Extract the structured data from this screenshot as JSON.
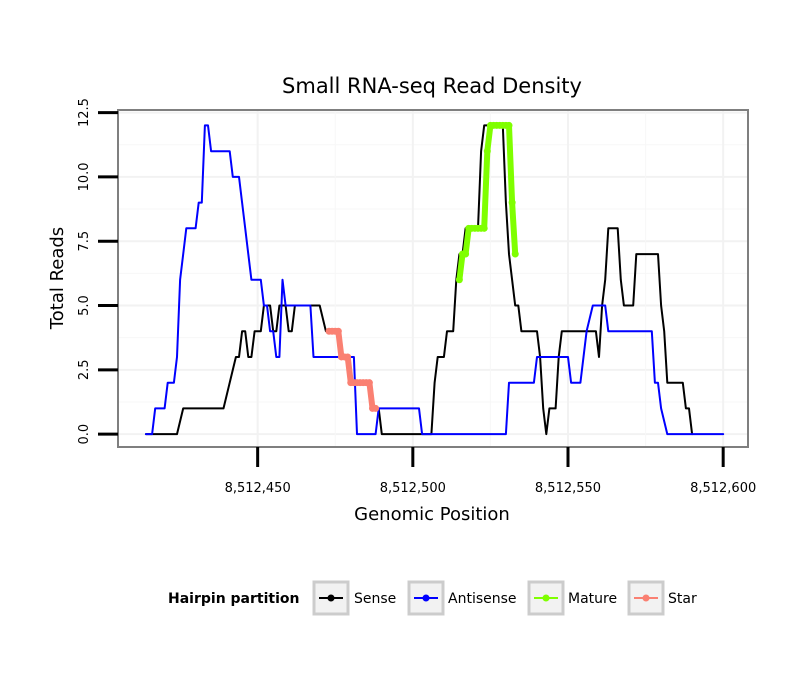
{
  "chart_data": {
    "type": "line",
    "title": "Small RNA-seq Read Density",
    "xlabel": "Genomic Position",
    "ylabel": "Total Reads",
    "xlim": [
      8512405,
      8512608
    ],
    "ylim": [
      -0.5,
      12.6
    ],
    "x_ticks": [
      8512450,
      8512500,
      8512550,
      8512600
    ],
    "x_tick_labels": [
      "8,512,450",
      "8,512,500",
      "8,512,550",
      "8,512,600"
    ],
    "y_ticks": [
      0,
      2.5,
      5,
      7.5,
      10,
      12.5
    ],
    "y_tick_labels": [
      "0.0",
      "2.5",
      "5.0",
      "7.5",
      "10.0",
      "12.5"
    ],
    "legend": {
      "title": "Hairpin partition",
      "position": "bottom",
      "entries": [
        {
          "label": "Sense",
          "color": "#000000"
        },
        {
          "label": "Antisense",
          "color": "#0000ff"
        },
        {
          "label": "Mature",
          "color": "#7fff00"
        },
        {
          "label": "Star",
          "color": "#fa8072"
        }
      ]
    },
    "series": [
      {
        "name": "Sense",
        "color": "#000000",
        "points": [
          [
            8512414,
            0
          ],
          [
            8512424,
            0
          ],
          [
            8512426,
            1
          ],
          [
            8512439,
            1
          ],
          [
            8512441,
            2
          ],
          [
            8512443,
            3
          ],
          [
            8512444,
            3
          ],
          [
            8512445,
            4
          ],
          [
            8512446,
            4
          ],
          [
            8512447,
            3
          ],
          [
            8512448,
            3
          ],
          [
            8512449,
            4
          ],
          [
            8512451,
            4
          ],
          [
            8512452,
            5
          ],
          [
            8512453,
            5
          ],
          [
            8512454,
            5
          ],
          [
            8512455,
            4
          ],
          [
            8512456,
            4
          ],
          [
            8512457,
            5
          ],
          [
            8512458,
            5
          ],
          [
            8512459,
            5
          ],
          [
            8512460,
            4
          ],
          [
            8512461,
            4
          ],
          [
            8512462,
            5
          ],
          [
            8512464,
            5
          ],
          [
            8512465,
            5
          ],
          [
            8512466,
            5
          ],
          [
            8512468,
            5
          ],
          [
            8512470,
            5
          ],
          [
            8512472,
            4
          ],
          [
            8512474,
            4
          ],
          [
            8512476,
            4
          ],
          [
            8512477,
            3
          ],
          [
            8512478,
            3
          ],
          [
            8512479,
            3
          ],
          [
            8512480,
            2
          ],
          [
            8512483,
            2
          ],
          [
            8512486,
            2
          ],
          [
            8512487,
            1
          ],
          [
            8512489,
            1
          ],
          [
            8512490,
            0
          ],
          [
            8512496,
            0
          ],
          [
            8512500,
            0
          ],
          [
            8512506,
            0
          ],
          [
            8512507,
            2
          ],
          [
            8512508,
            3
          ],
          [
            8512510,
            3
          ],
          [
            8512511,
            4
          ],
          [
            8512513,
            4
          ],
          [
            8512514,
            6
          ],
          [
            8512515,
            7
          ],
          [
            8512516,
            7
          ],
          [
            8512517,
            8
          ],
          [
            8512520,
            8
          ],
          [
            8512521,
            8
          ],
          [
            8512522,
            11
          ],
          [
            8512523,
            12
          ],
          [
            8512526,
            12
          ],
          [
            8512528,
            12
          ],
          [
            8512529,
            12
          ],
          [
            8512530,
            9
          ],
          [
            8512531,
            7
          ],
          [
            8512532,
            6
          ],
          [
            8512533,
            5
          ],
          [
            8512534,
            5
          ],
          [
            8512535,
            4
          ],
          [
            8512538,
            4
          ],
          [
            8512540,
            4
          ],
          [
            8512541,
            3
          ],
          [
            8512542,
            1
          ],
          [
            8512543,
            0
          ],
          [
            8512544,
            1
          ],
          [
            8512546,
            1
          ],
          [
            8512547,
            3
          ],
          [
            8512548,
            4
          ],
          [
            8512551,
            4
          ],
          [
            8512554,
            4
          ],
          [
            8512557,
            4
          ],
          [
            8512559,
            4
          ],
          [
            8512560,
            3
          ],
          [
            8512561,
            5
          ],
          [
            8512562,
            6
          ],
          [
            8512563,
            8
          ],
          [
            8512566,
            8
          ],
          [
            8512567,
            6
          ],
          [
            8512568,
            5
          ],
          [
            8512569,
            5
          ],
          [
            8512571,
            5
          ],
          [
            8512572,
            7
          ],
          [
            8512576,
            7
          ],
          [
            8512579,
            7
          ],
          [
            8512580,
            5
          ],
          [
            8512581,
            4
          ],
          [
            8512582,
            2
          ],
          [
            8512587,
            2
          ],
          [
            8512588,
            1
          ],
          [
            8512589,
            1
          ],
          [
            8512590,
            0
          ]
        ]
      },
      {
        "name": "Antisense",
        "color": "#0000ff",
        "points": [
          [
            8512414,
            0
          ],
          [
            8512416,
            0
          ],
          [
            8512417,
            1
          ],
          [
            8512420,
            1
          ],
          [
            8512421,
            2
          ],
          [
            8512423,
            2
          ],
          [
            8512424,
            3
          ],
          [
            8512425,
            6
          ],
          [
            8512426,
            7
          ],
          [
            8512427,
            8
          ],
          [
            8512430,
            8
          ],
          [
            8512431,
            9
          ],
          [
            8512432,
            9
          ],
          [
            8512433,
            12
          ],
          [
            8512434,
            12
          ],
          [
            8512435,
            11
          ],
          [
            8512438,
            11
          ],
          [
            8512441,
            11
          ],
          [
            8512442,
            10
          ],
          [
            8512444,
            10
          ],
          [
            8512445,
            9
          ],
          [
            8512446,
            8
          ],
          [
            8512447,
            7
          ],
          [
            8512448,
            6
          ],
          [
            8512451,
            6
          ],
          [
            8512452,
            5
          ],
          [
            8512453,
            5
          ],
          [
            8512454,
            4
          ],
          [
            8512455,
            4
          ],
          [
            8512456,
            3
          ],
          [
            8512457,
            3
          ],
          [
            8512458,
            6
          ],
          [
            8512459,
            5
          ],
          [
            8512460,
            5
          ],
          [
            8512461,
            5
          ],
          [
            8512463,
            5
          ],
          [
            8512467,
            5
          ],
          [
            8512468,
            3
          ],
          [
            8512474,
            3
          ],
          [
            8512481,
            3
          ],
          [
            8512482,
            0
          ],
          [
            8512488,
            0
          ],
          [
            8512489,
            1
          ],
          [
            8512494,
            1
          ],
          [
            8512497,
            1
          ],
          [
            8512500,
            1
          ],
          [
            8512502,
            1
          ],
          [
            8512503,
            0
          ],
          [
            8512508,
            0
          ],
          [
            8512510,
            0
          ],
          [
            8512515,
            0
          ],
          [
            8512520,
            0
          ],
          [
            8512530,
            0
          ],
          [
            8512531,
            2
          ],
          [
            8512539,
            2
          ],
          [
            8512540,
            3
          ],
          [
            8512550,
            3
          ],
          [
            8512551,
            2
          ],
          [
            8512554,
            2
          ],
          [
            8512555,
            3
          ],
          [
            8512556,
            4
          ],
          [
            8512558,
            5
          ],
          [
            8512562,
            5
          ],
          [
            8512563,
            4
          ],
          [
            8512571,
            4
          ],
          [
            8512575,
            4
          ],
          [
            8512577,
            4
          ],
          [
            8512578,
            2
          ],
          [
            8512579,
            2
          ],
          [
            8512580,
            1
          ],
          [
            8512582,
            0
          ],
          [
            8512590,
            0
          ],
          [
            8512600,
            0
          ]
        ]
      },
      {
        "name": "Mature",
        "color": "#7fff00",
        "points": [
          [
            8512515,
            6
          ],
          [
            8512516,
            7
          ],
          [
            8512517,
            7
          ],
          [
            8512518,
            8
          ],
          [
            8512519,
            8
          ],
          [
            8512520,
            8
          ],
          [
            8512521,
            8
          ],
          [
            8512522,
            8
          ],
          [
            8512523,
            8
          ],
          [
            8512524,
            11
          ],
          [
            8512525,
            12
          ],
          [
            8512526,
            12
          ],
          [
            8512527,
            12
          ],
          [
            8512528,
            12
          ],
          [
            8512529,
            12
          ],
          [
            8512530,
            12
          ],
          [
            8512531,
            12
          ],
          [
            8512532,
            9
          ],
          [
            8512533,
            7
          ]
        ]
      },
      {
        "name": "Star",
        "color": "#fa8072",
        "points": [
          [
            8512473,
            4
          ],
          [
            8512474,
            4
          ],
          [
            8512475,
            4
          ],
          [
            8512476,
            4
          ],
          [
            8512477,
            3
          ],
          [
            8512478,
            3
          ],
          [
            8512479,
            3
          ],
          [
            8512480,
            2
          ],
          [
            8512481,
            2
          ],
          [
            8512482,
            2
          ],
          [
            8512483,
            2
          ],
          [
            8512484,
            2
          ],
          [
            8512485,
            2
          ],
          [
            8512486,
            2
          ],
          [
            8512487,
            1
          ],
          [
            8512488,
            1
          ]
        ]
      }
    ]
  }
}
